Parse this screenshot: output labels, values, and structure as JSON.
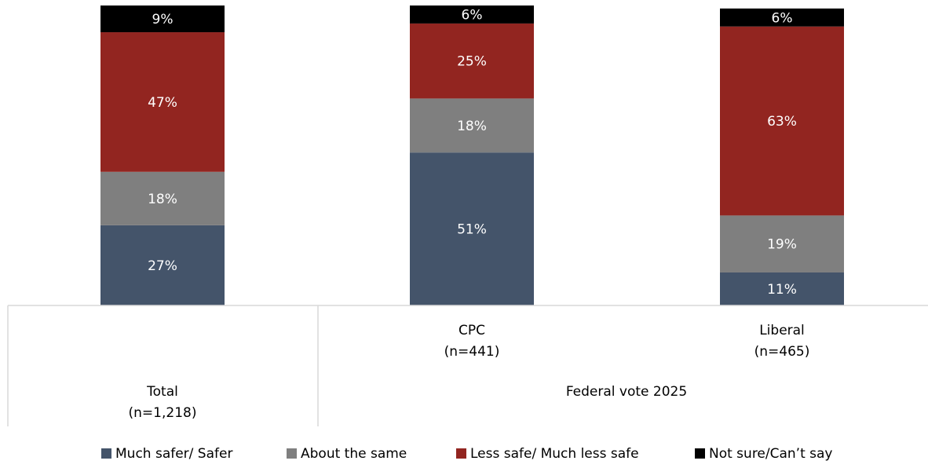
{
  "chart_data": {
    "type": "bar",
    "stacked": true,
    "categories": [
      {
        "label": "Total",
        "n": "(n=1,218)"
      },
      {
        "label": "CPC",
        "n": "(n=441)"
      },
      {
        "label": "Liberal",
        "n": "(n=465)"
      }
    ],
    "group_label": "Federal vote 2025",
    "series": [
      {
        "name": "Much safer/ Safer",
        "color": "#44546a",
        "values": [
          27,
          51,
          11
        ],
        "labels": [
          "27%",
          "51%",
          "11%"
        ]
      },
      {
        "name": "About the same",
        "color": "#7f7f7f",
        "values": [
          18,
          18,
          19
        ],
        "labels": [
          "18%",
          "18%",
          "19%"
        ]
      },
      {
        "name": "Less safe/ Much less safe",
        "color": "#922520",
        "values": [
          47,
          25,
          63
        ],
        "labels": [
          "47%",
          "25%",
          "63%"
        ]
      },
      {
        "name": "Not sure/Can’t say",
        "color": "#000000",
        "values": [
          9,
          6,
          6
        ],
        "labels": [
          "9%",
          "6%",
          "6%"
        ]
      }
    ],
    "label_color": "#ffffff",
    "ylim": [
      0,
      100
    ],
    "legend_position": "bottom",
    "grid": false
  }
}
